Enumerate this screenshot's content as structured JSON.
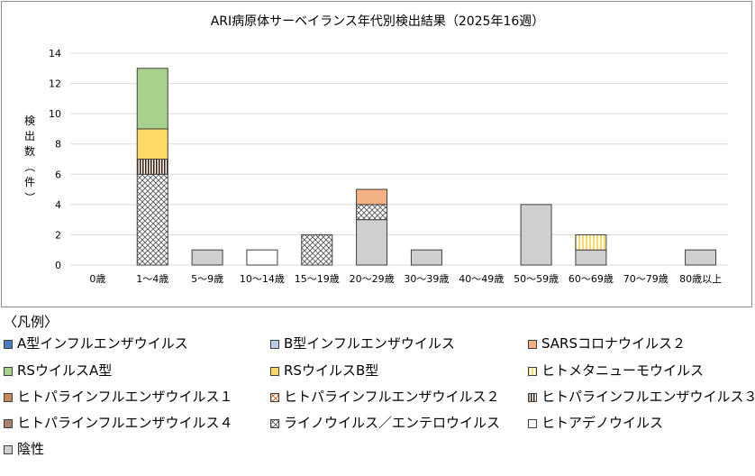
{
  "chart_data": {
    "type": "bar",
    "stacked": true,
    "title": "ARI病原体サーベイランス年代別検出結果（2025年16週）",
    "ylabel": "検出数（件）",
    "xlabel": "",
    "ylim": [
      0,
      14
    ],
    "yticks": [
      0,
      2,
      4,
      6,
      8,
      10,
      12,
      14
    ],
    "grid": true,
    "legend_position": "bottom",
    "categories": [
      "0歳",
      "1～4歳",
      "5～9歳",
      "10～14歳",
      "15～19歳",
      "20～29歳",
      "30～39歳",
      "40～49歳",
      "50～59歳",
      "60～69歳",
      "70～79歳",
      "80歳以上"
    ],
    "series": [
      {
        "name": "A型インフルエンザウイルス",
        "pattern": "solid",
        "color": "#4a7ebb",
        "values": [
          0,
          0,
          0,
          0,
          0,
          0,
          0,
          0,
          0,
          0,
          0,
          0
        ]
      },
      {
        "name": "B型インフルエンザウイルス",
        "pattern": "solid",
        "color": "#b9cde5",
        "values": [
          0,
          0,
          0,
          0,
          0,
          0,
          0,
          0,
          0,
          0,
          0,
          0
        ]
      },
      {
        "name": "SARSコロナウイルス２",
        "pattern": "solid",
        "color": "#f4b183",
        "values": [
          0,
          0,
          0,
          0,
          0,
          1,
          0,
          0,
          0,
          0,
          0,
          0
        ]
      },
      {
        "name": "RSウイルスA型",
        "pattern": "solid",
        "color": "#a9d18e",
        "values": [
          0,
          4,
          0,
          0,
          0,
          0,
          0,
          0,
          0,
          0,
          0,
          0
        ]
      },
      {
        "name": "RSウイルスB型",
        "pattern": "solid",
        "color": "#ffd966",
        "values": [
          0,
          2,
          0,
          0,
          0,
          0,
          0,
          0,
          0,
          0,
          0,
          0
        ]
      },
      {
        "name": "ヒトメタニューモウイルス",
        "pattern": "vstripe-yellow",
        "color": "#ffe699",
        "values": [
          0,
          0,
          0,
          0,
          0,
          0,
          0,
          0,
          0,
          1,
          0,
          0
        ]
      },
      {
        "name": "ヒトパラインフルエンザウイルス１",
        "pattern": "solid",
        "color": "#c9875a",
        "values": [
          0,
          0,
          0,
          0,
          0,
          0,
          0,
          0,
          0,
          0,
          0,
          0
        ]
      },
      {
        "name": "ヒトパラインフルエンザウイルス２",
        "pattern": "cross-orange",
        "color": "#f4b183",
        "values": [
          0,
          0,
          0,
          0,
          0,
          0,
          0,
          0,
          0,
          0,
          0,
          0
        ]
      },
      {
        "name": "ヒトパラインフルエンザウイルス３",
        "pattern": "vstripe-dark",
        "color": "#843c0c",
        "values": [
          0,
          1,
          0,
          0,
          0,
          0,
          0,
          0,
          0,
          0,
          0,
          0
        ]
      },
      {
        "name": "ヒトパラインフルエンザウイルス４",
        "pattern": "solid",
        "color": "#a98272",
        "values": [
          0,
          0,
          0,
          0,
          0,
          0,
          0,
          0,
          0,
          0,
          0,
          0
        ]
      },
      {
        "name": "ライノウイルス／エンテロウイルス",
        "pattern": "crosshatch",
        "color": "#ffffff",
        "values": [
          0,
          6,
          0,
          0,
          2,
          1,
          0,
          0,
          0,
          0,
          0,
          0
        ]
      },
      {
        "name": "ヒトアデノウイルス",
        "pattern": "solid",
        "color": "#ffffff",
        "values": [
          0,
          0,
          0,
          1,
          0,
          0,
          0,
          0,
          0,
          0,
          0,
          0
        ]
      },
      {
        "name": "陰性",
        "pattern": "solid",
        "color": "#d0cece",
        "values": [
          0,
          0,
          1,
          0,
          0,
          3,
          1,
          0,
          4,
          1,
          0,
          1
        ]
      }
    ],
    "stack_order": [
      "陰性",
      "ヒトアデノウイルス",
      "ライノウイルス／エンテロウイルス",
      "ヒトパラインフルエンザウイルス４",
      "ヒトパラインフルエンザウイルス３",
      "ヒトパラインフルエンザウイルス２",
      "ヒトパラインフルエンザウイルス１",
      "ヒトメタニューモウイルス",
      "RSウイルスB型",
      "RSウイルスA型",
      "SARSコロナウイルス２",
      "B型インフルエンザウイルス",
      "A型インフルエンザウイルス"
    ]
  },
  "legend": {
    "heading": "〈凡例〉"
  }
}
